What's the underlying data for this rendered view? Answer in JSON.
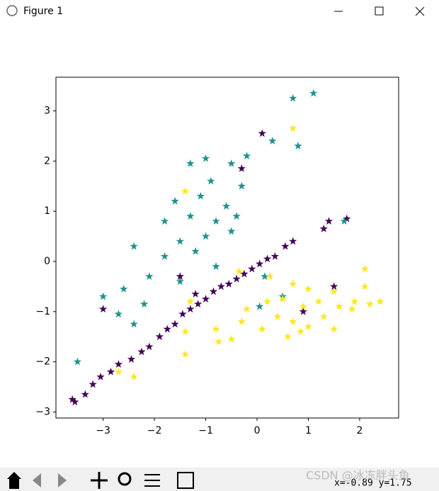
{
  "window": {
    "title": "Figure 1"
  },
  "status": {
    "coords": "x=-0.89 y=1.75",
    "watermark": "CSDN @冰冻胖头鱼"
  },
  "chart_data": {
    "type": "scatter",
    "marker": "star",
    "xlim": [
      -3.92,
      2.76
    ],
    "ylim": [
      -3.12,
      3.67
    ],
    "xticks": [
      {
        "value": -3,
        "label": "−3"
      },
      {
        "value": -2,
        "label": "−2"
      },
      {
        "value": -1,
        "label": "−1"
      },
      0,
      1,
      2
    ],
    "yticks": [
      {
        "value": -3,
        "label": "−3"
      },
      {
        "value": -2,
        "label": "−2"
      },
      {
        "value": -1,
        "label": "−1"
      },
      0,
      1,
      2,
      3
    ],
    "grid": false,
    "series": [
      {
        "color": "#440154",
        "x": [
          -3.6,
          -3.55,
          -3.35,
          -3.2,
          -3.05,
          -2.85,
          -2.7,
          -2.45,
          -2.25,
          -2.1,
          -1.9,
          -1.75,
          -1.6,
          -1.45,
          -1.3,
          -1.15,
          -1.0,
          -0.85,
          -0.7,
          -0.55,
          -0.4,
          -0.25,
          -0.1,
          0.05,
          0.2,
          0.35,
          0.55,
          0.7,
          1.3,
          1.4,
          1.75,
          0.1,
          -0.3,
          -3.0,
          -1.5,
          0.9,
          1.5,
          -1.2
        ],
        "y": [
          -2.75,
          -2.8,
          -2.65,
          -2.45,
          -2.3,
          -2.2,
          -2.05,
          -1.95,
          -1.8,
          -1.7,
          -1.5,
          -1.35,
          -1.25,
          -1.05,
          -0.95,
          -0.85,
          -0.75,
          -0.6,
          -0.5,
          -0.45,
          -0.35,
          -0.25,
          -0.15,
          -0.05,
          0.05,
          0.1,
          0.3,
          0.4,
          0.65,
          0.8,
          0.85,
          2.55,
          1.85,
          -0.95,
          -0.3,
          -1.0,
          -0.5,
          -0.65
        ]
      },
      {
        "color": "#21918c",
        "x": [
          1.1,
          0.7,
          0.8,
          0.3,
          -0.2,
          -0.5,
          -1.0,
          -1.3,
          -0.9,
          -0.3,
          -1.6,
          -1.1,
          -0.6,
          -1.3,
          -0.8,
          -1.8,
          -1.0,
          -1.5,
          -0.5,
          -2.4,
          -1.2,
          -1.8,
          -0.8,
          -2.1,
          -1.5,
          -2.6,
          -3.0,
          -2.7,
          -2.4,
          -3.5,
          -2.2,
          0.5,
          0.05,
          1.7,
          -0.4,
          0.15
        ],
        "y": [
          3.35,
          3.25,
          2.3,
          2.4,
          2.1,
          1.95,
          2.05,
          1.95,
          1.6,
          1.5,
          1.2,
          1.3,
          1.1,
          0.9,
          0.8,
          0.8,
          0.5,
          0.4,
          0.6,
          0.3,
          0.2,
          0.1,
          -0.1,
          -0.3,
          -0.4,
          -0.55,
          -0.7,
          -1.05,
          -1.25,
          -2.0,
          -0.85,
          -0.7,
          -0.9,
          0.8,
          0.9,
          -0.3
        ]
      },
      {
        "color": "#fde725",
        "x": [
          0.7,
          0.7,
          1.0,
          1.5,
          2.1,
          2.4,
          2.2,
          1.9,
          1.6,
          1.2,
          0.9,
          0.5,
          0.2,
          -0.2,
          -0.3,
          0.1,
          0.4,
          0.7,
          1.0,
          1.3,
          1.5,
          0.6,
          -0.5,
          -0.8,
          -1.4,
          -1.4,
          -1.3,
          -2.4,
          -2.7,
          -1.4,
          -0.75,
          0.85,
          1.85,
          2.1,
          0.25,
          -0.35
        ],
        "y": [
          2.65,
          -0.45,
          -0.55,
          -0.6,
          -0.5,
          -0.8,
          -0.85,
          -0.8,
          -0.9,
          -0.8,
          -0.9,
          -0.75,
          -0.8,
          -0.95,
          -1.2,
          -1.35,
          -1.1,
          -1.2,
          -1.3,
          -1.1,
          -1.35,
          -1.5,
          -1.55,
          -1.35,
          -1.4,
          1.4,
          -0.8,
          -2.3,
          -2.2,
          -1.85,
          -1.6,
          -1.4,
          -0.95,
          -0.15,
          -0.3,
          -0.2
        ]
      }
    ]
  }
}
